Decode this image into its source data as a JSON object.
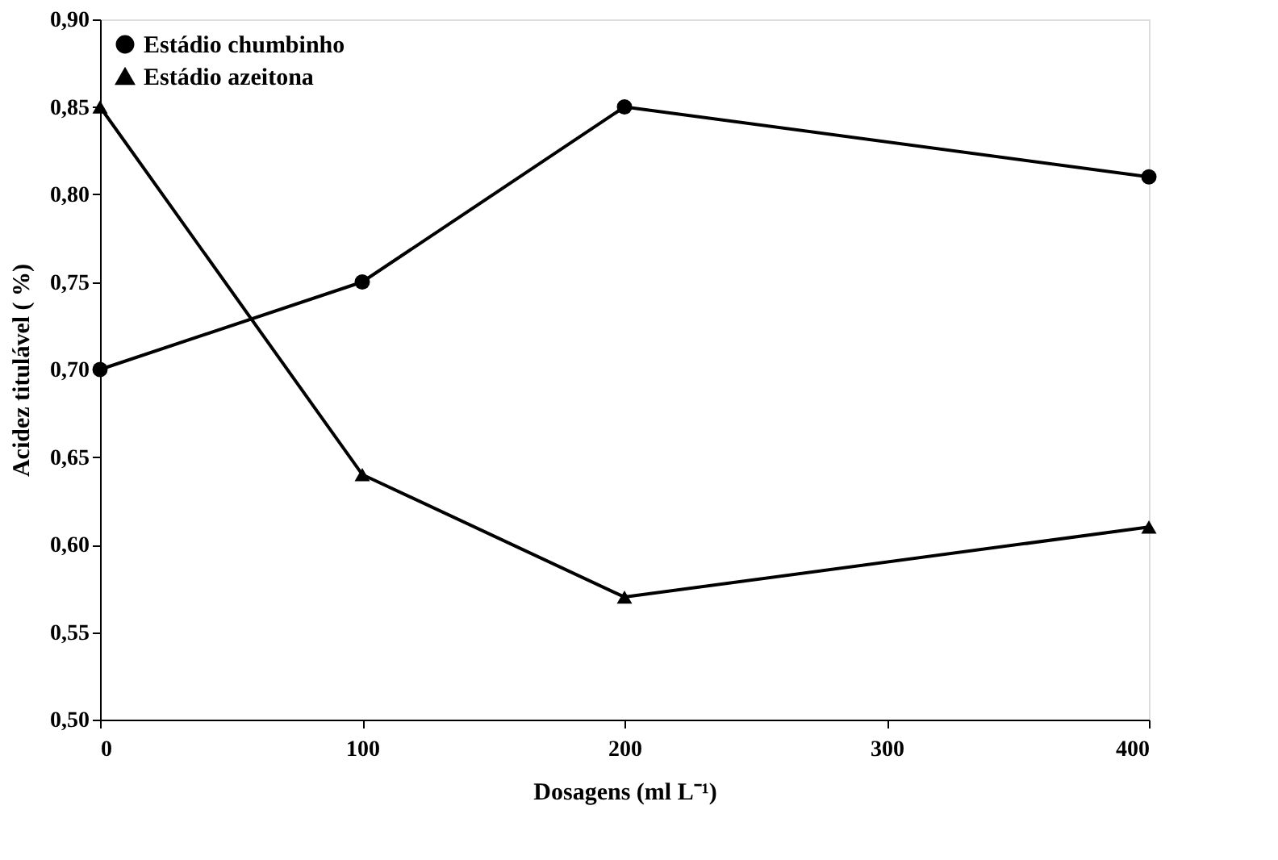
{
  "chart_data": {
    "type": "line",
    "xlabel": "Dosagens (ml L⁻¹)",
    "ylabel": "Acidez titulável ( %)",
    "x": [
      0,
      100,
      200,
      400
    ],
    "series": [
      {
        "name": "Estádio chumbinho",
        "color": "#000000",
        "marker": "circle",
        "values": [
          0.7,
          0.75,
          0.85,
          0.81
        ]
      },
      {
        "name": "Estádio azeitona",
        "color": "#000000",
        "marker": "triangle",
        "values": [
          0.85,
          0.64,
          0.57,
          0.61
        ]
      }
    ],
    "xlim": [
      0,
      400
    ],
    "xticks": [
      0,
      100,
      200,
      300,
      400
    ],
    "ylim": [
      0.5,
      0.9
    ],
    "yticks": [
      {
        "value": 0.5,
        "label": "0,50"
      },
      {
        "value": 0.55,
        "label": "0,55"
      },
      {
        "value": 0.6,
        "label": "0,60"
      },
      {
        "value": 0.65,
        "label": "0,65"
      },
      {
        "value": 0.7,
        "label": "0,70"
      },
      {
        "value": 0.75,
        "label": "0,75"
      },
      {
        "value": 0.8,
        "label": "0,80"
      },
      {
        "value": 0.85,
        "label": "0,85"
      },
      {
        "value": 0.9,
        "label": "0,90"
      }
    ],
    "grid": false,
    "legend": "top left",
    "line_style": "solid"
  }
}
